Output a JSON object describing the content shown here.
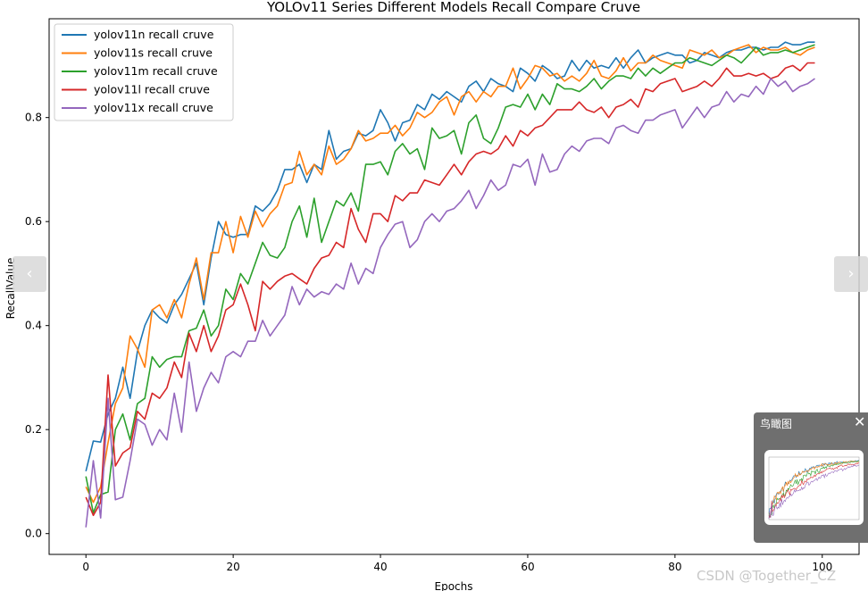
{
  "chart_data": {
    "type": "line",
    "title": "YOLOv11 Series Different Models Recall Compare Cruve",
    "xlabel": "Epochs",
    "ylabel": "RecallValue",
    "xlim": [
      -5,
      105
    ],
    "ylim": [
      -0.04,
      0.99
    ],
    "xticks": [
      0,
      20,
      40,
      60,
      80,
      100
    ],
    "xtick_labels": [
      "0",
      "20",
      "40",
      "60",
      "80",
      "100"
    ],
    "yticks": [
      0.0,
      0.2,
      0.4,
      0.6,
      0.8
    ],
    "ytick_labels": [
      "0.0",
      "0.2",
      "0.4",
      "0.6",
      "0.8"
    ],
    "grid": false,
    "legend_position": "top-left",
    "series": [
      {
        "name": "yolov11n recall cruve",
        "color": "#1f77b4",
        "values": [
          0.12,
          0.178,
          0.176,
          0.23,
          0.26,
          0.32,
          0.26,
          0.35,
          0.4,
          0.43,
          0.415,
          0.405,
          0.44,
          0.46,
          0.49,
          0.52,
          0.44,
          0.53,
          0.6,
          0.575,
          0.57,
          0.575,
          0.575,
          0.63,
          0.62,
          0.635,
          0.66,
          0.7,
          0.7,
          0.71,
          0.675,
          0.71,
          0.7,
          0.775,
          0.72,
          0.735,
          0.74,
          0.77,
          0.765,
          0.775,
          0.815,
          0.79,
          0.755,
          0.79,
          0.795,
          0.825,
          0.815,
          0.845,
          0.835,
          0.85,
          0.84,
          0.83,
          0.86,
          0.87,
          0.85,
          0.875,
          0.865,
          0.86,
          0.85,
          0.895,
          0.885,
          0.87,
          0.9,
          0.89,
          0.875,
          0.88,
          0.91,
          0.89,
          0.91,
          0.895,
          0.9,
          0.895,
          0.915,
          0.895,
          0.915,
          0.93,
          0.905,
          0.915,
          0.92,
          0.925,
          0.92,
          0.92,
          0.905,
          0.91,
          0.925,
          0.92,
          0.915,
          0.925,
          0.93,
          0.93,
          0.935,
          0.935,
          0.93,
          0.935,
          0.935,
          0.945,
          0.94,
          0.94,
          0.945,
          0.945
        ]
      },
      {
        "name": "yolov11s recall cruve",
        "color": "#ff7f0e",
        "values": [
          0.09,
          0.06,
          0.09,
          0.175,
          0.25,
          0.28,
          0.38,
          0.355,
          0.32,
          0.43,
          0.44,
          0.415,
          0.45,
          0.415,
          0.48,
          0.53,
          0.45,
          0.54,
          0.54,
          0.6,
          0.54,
          0.61,
          0.57,
          0.62,
          0.59,
          0.615,
          0.63,
          0.67,
          0.675,
          0.735,
          0.69,
          0.71,
          0.69,
          0.745,
          0.71,
          0.72,
          0.74,
          0.775,
          0.755,
          0.76,
          0.77,
          0.77,
          0.785,
          0.765,
          0.78,
          0.81,
          0.8,
          0.81,
          0.83,
          0.84,
          0.805,
          0.84,
          0.85,
          0.83,
          0.85,
          0.84,
          0.86,
          0.86,
          0.895,
          0.855,
          0.875,
          0.9,
          0.895,
          0.88,
          0.885,
          0.87,
          0.88,
          0.87,
          0.885,
          0.91,
          0.88,
          0.875,
          0.89,
          0.915,
          0.89,
          0.905,
          0.905,
          0.92,
          0.91,
          0.905,
          0.9,
          0.895,
          0.93,
          0.925,
          0.92,
          0.93,
          0.915,
          0.92,
          0.93,
          0.935,
          0.94,
          0.925,
          0.935,
          0.93,
          0.93,
          0.935,
          0.925,
          0.92,
          0.93,
          0.935
        ]
      },
      {
        "name": "yolov11m recall cruve",
        "color": "#2ca02c",
        "values": [
          0.11,
          0.04,
          0.075,
          0.08,
          0.2,
          0.23,
          0.18,
          0.25,
          0.26,
          0.34,
          0.32,
          0.335,
          0.34,
          0.34,
          0.39,
          0.395,
          0.43,
          0.38,
          0.4,
          0.47,
          0.45,
          0.5,
          0.48,
          0.52,
          0.56,
          0.535,
          0.53,
          0.55,
          0.6,
          0.63,
          0.57,
          0.645,
          0.56,
          0.6,
          0.64,
          0.63,
          0.655,
          0.62,
          0.71,
          0.71,
          0.715,
          0.69,
          0.735,
          0.75,
          0.73,
          0.74,
          0.7,
          0.78,
          0.76,
          0.765,
          0.775,
          0.73,
          0.79,
          0.805,
          0.76,
          0.75,
          0.78,
          0.82,
          0.825,
          0.82,
          0.845,
          0.815,
          0.845,
          0.825,
          0.865,
          0.855,
          0.855,
          0.85,
          0.86,
          0.875,
          0.855,
          0.87,
          0.88,
          0.88,
          0.875,
          0.895,
          0.88,
          0.895,
          0.885,
          0.895,
          0.905,
          0.905,
          0.915,
          0.91,
          0.905,
          0.9,
          0.91,
          0.92,
          0.915,
          0.905,
          0.92,
          0.935,
          0.92,
          0.925,
          0.925,
          0.93,
          0.925,
          0.93,
          0.935,
          0.94
        ]
      },
      {
        "name": "yolov11l recall cruve",
        "color": "#d62728",
        "values": [
          0.07,
          0.035,
          0.06,
          0.305,
          0.13,
          0.155,
          0.165,
          0.235,
          0.22,
          0.27,
          0.26,
          0.28,
          0.33,
          0.3,
          0.385,
          0.35,
          0.4,
          0.35,
          0.38,
          0.43,
          0.44,
          0.48,
          0.44,
          0.39,
          0.485,
          0.47,
          0.485,
          0.495,
          0.5,
          0.49,
          0.48,
          0.51,
          0.53,
          0.535,
          0.56,
          0.55,
          0.625,
          0.585,
          0.56,
          0.615,
          0.615,
          0.6,
          0.65,
          0.64,
          0.655,
          0.655,
          0.68,
          0.675,
          0.67,
          0.69,
          0.71,
          0.69,
          0.715,
          0.73,
          0.735,
          0.73,
          0.74,
          0.765,
          0.745,
          0.775,
          0.765,
          0.78,
          0.785,
          0.8,
          0.815,
          0.815,
          0.815,
          0.83,
          0.815,
          0.81,
          0.82,
          0.8,
          0.82,
          0.825,
          0.835,
          0.82,
          0.855,
          0.85,
          0.865,
          0.87,
          0.875,
          0.85,
          0.855,
          0.86,
          0.87,
          0.86,
          0.875,
          0.895,
          0.88,
          0.88,
          0.885,
          0.88,
          0.885,
          0.875,
          0.88,
          0.895,
          0.9,
          0.89,
          0.905,
          0.905
        ]
      },
      {
        "name": "yolov11x recall cruve",
        "color": "#9467bd",
        "values": [
          0.012,
          0.14,
          0.03,
          0.26,
          0.065,
          0.07,
          0.14,
          0.22,
          0.21,
          0.17,
          0.2,
          0.18,
          0.27,
          0.195,
          0.33,
          0.235,
          0.28,
          0.31,
          0.29,
          0.34,
          0.35,
          0.34,
          0.37,
          0.37,
          0.41,
          0.38,
          0.4,
          0.42,
          0.475,
          0.44,
          0.47,
          0.455,
          0.465,
          0.46,
          0.48,
          0.47,
          0.52,
          0.48,
          0.51,
          0.5,
          0.55,
          0.575,
          0.595,
          0.6,
          0.55,
          0.565,
          0.6,
          0.615,
          0.6,
          0.62,
          0.625,
          0.64,
          0.66,
          0.625,
          0.65,
          0.68,
          0.66,
          0.67,
          0.71,
          0.705,
          0.72,
          0.67,
          0.73,
          0.695,
          0.7,
          0.73,
          0.745,
          0.735,
          0.755,
          0.76,
          0.76,
          0.75,
          0.78,
          0.785,
          0.775,
          0.77,
          0.795,
          0.795,
          0.805,
          0.81,
          0.815,
          0.78,
          0.8,
          0.82,
          0.8,
          0.82,
          0.825,
          0.85,
          0.83,
          0.845,
          0.84,
          0.86,
          0.845,
          0.875,
          0.86,
          0.87,
          0.85,
          0.86,
          0.865,
          0.875
        ]
      }
    ]
  },
  "ui": {
    "prev_icon": "‹",
    "next_icon": "›",
    "minimap_title": "鸟瞰图",
    "minimap_close_icon": "✕",
    "watermark": "CSDN @Together_CZ"
  }
}
